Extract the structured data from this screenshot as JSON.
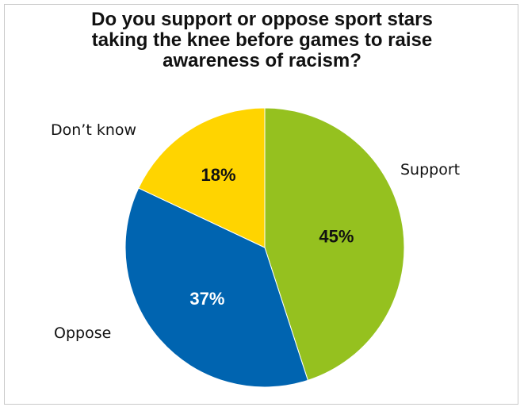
{
  "chart_data": {
    "type": "pie",
    "title": "Do you support or oppose sport stars taking the knee before games to raise awareness of racism?",
    "title_lines": [
      "Do you support or oppose sport stars",
      "taking the knee before games to raise",
      "awareness of racism?"
    ],
    "slices": [
      {
        "label": "Support",
        "value": 45,
        "value_label": "45%",
        "color": "#95C11F",
        "text_color": "#111111"
      },
      {
        "label": "Oppose",
        "value": 37,
        "value_label": "37%",
        "color": "#0064B0",
        "text_color": "#ffffff"
      },
      {
        "label": "Don’t know",
        "value": 18,
        "value_label": "18%",
        "color": "#FFD400",
        "text_color": "#111111"
      }
    ],
    "start": "12 o'clock",
    "direction": "clockwise"
  }
}
